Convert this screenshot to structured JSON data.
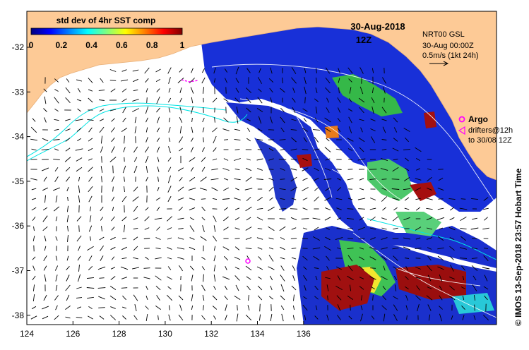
{
  "map": {
    "title_date": "30-Aug-2018",
    "title_time": "12Z",
    "colorbar": {
      "title": "std dev of 4hr SST comp",
      "ticks": [
        "0",
        "0.2",
        "0.4",
        "0.6",
        "0.8",
        "1"
      ],
      "colors": [
        "#00007f",
        "#0000ff",
        "#0080ff",
        "#00ffff",
        "#7fff7f",
        "#ffff00",
        "#ff8000",
        "#ff0000",
        "#7f0000"
      ]
    },
    "product_info": {
      "line1": "NRT00 GSL",
      "line2": "30-Aug 00:00Z",
      "line3": "0.5m/s (1kt 24h)"
    },
    "legend": {
      "argo": "Argo",
      "drifters_line1": "drifters@12h",
      "drifters_line2": "to 30/08 12Z",
      "argo_marker_color": "#ff00ff"
    },
    "lon_ticks": [
      "124",
      "126",
      "128",
      "130",
      "132",
      "134",
      "136"
    ],
    "lat_ticks": [
      "-32",
      "-33",
      "-34",
      "-35",
      "-36",
      "-37",
      "-38"
    ],
    "credit": "© IMOS 13-Sep-2018 23:57 Hobart Time",
    "colors": {
      "land": "#fdca96",
      "ocean": "#ffffff",
      "contour": "#00e5e5",
      "current_vector": "#000000"
    }
  }
}
